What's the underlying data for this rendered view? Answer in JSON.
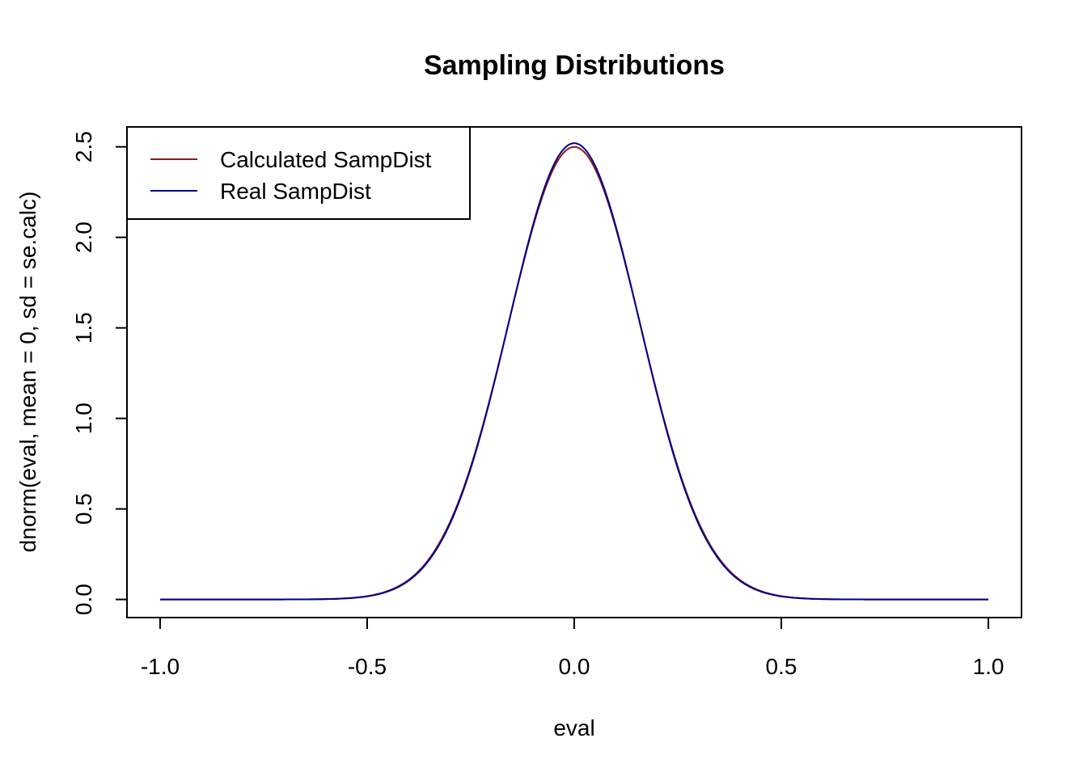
{
  "chart_data": {
    "type": "line",
    "title": "Sampling Distributions",
    "xlabel": "eval",
    "ylabel": "dnorm(eval, mean = 0, sd = se.calc)",
    "xlim": [
      -1.08,
      1.08
    ],
    "ylim": [
      -0.1,
      2.61
    ],
    "x_ticks": [
      -1.0,
      -0.5,
      0.0,
      0.5,
      1.0
    ],
    "x_tick_labels": [
      "-1.0",
      "-0.5",
      "0.0",
      "0.5",
      "1.0"
    ],
    "y_ticks": [
      0.0,
      0.5,
      1.0,
      1.5,
      2.0,
      2.5
    ],
    "y_tick_labels": [
      "0.0",
      "0.5",
      "1.0",
      "1.5",
      "2.0",
      "2.5"
    ],
    "grid": false,
    "legend": {
      "position": "top-left",
      "entries": [
        {
          "label": "Calculated SampDist",
          "color": "#8b1a1a"
        },
        {
          "label": "Real SampDist",
          "color": "#00008b"
        }
      ]
    },
    "series": [
      {
        "name": "Calculated SampDist",
        "color": "#8b1a1a",
        "distribution": "normal",
        "mean": 0.0,
        "sd": 0.1596,
        "x_range": [
          -1.0,
          1.0
        ]
      },
      {
        "name": "Real SampDist",
        "color": "#00008b",
        "distribution": "normal",
        "mean": 0.0,
        "sd": 0.1583,
        "x_range": [
          -1.0,
          1.0
        ]
      }
    ]
  }
}
